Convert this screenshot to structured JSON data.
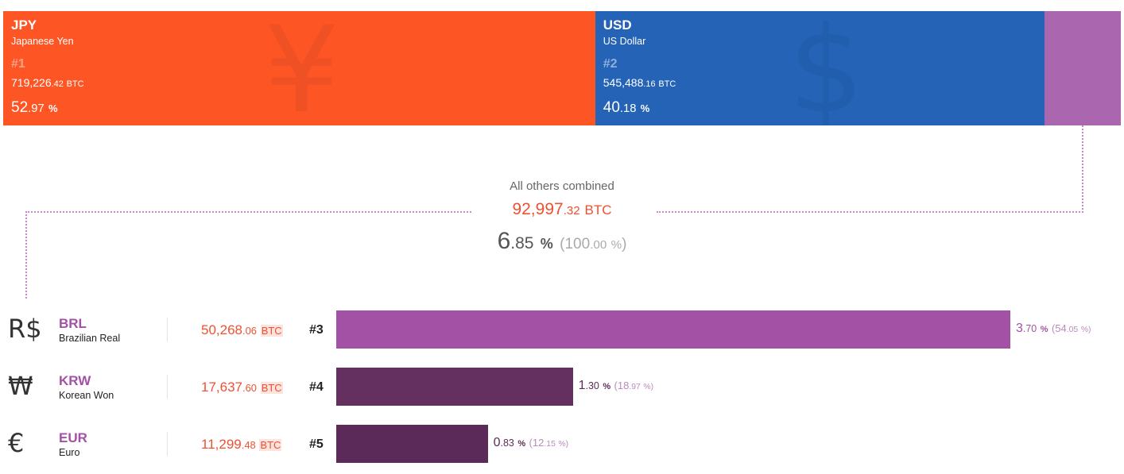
{
  "top_currencies": [
    {
      "code": "JPY",
      "name": "Japanese Yen",
      "symbol": "¥",
      "rank": "#1",
      "btc_int": "719,226",
      "btc_dec": ".42",
      "btc_unit": "BTC",
      "pct_int": "52",
      "pct_dec": ".97",
      "pct_unit": "%",
      "color": "#fd5523",
      "rank_color": "#fca189",
      "symbol_color": "#e54e25"
    },
    {
      "code": "USD",
      "name": "US Dollar",
      "symbol": "$",
      "rank": "#2",
      "btc_int": "545,488",
      "btc_dec": ".16",
      "btc_unit": "BTC",
      "pct_int": "40",
      "pct_dec": ".18",
      "pct_unit": "%",
      "color": "#2563b7",
      "rank_color": "#90b0dc",
      "symbol_color": "#1f5aa6"
    }
  ],
  "others_color": "#ab66b0",
  "others": {
    "label": "All others combined",
    "btc_int": "92,997",
    "btc_dec": ".32",
    "btc_unit": "BTC",
    "pct_int": "6",
    "pct_dec": ".85",
    "pct_unit": "%",
    "share_open": "(",
    "share_int": "100",
    "share_dec": ".00",
    "share_unit": "%",
    "share_close": ")"
  },
  "rows": [
    {
      "symbol": "R$",
      "code": "BRL",
      "name": "Brazilian Real",
      "btc_int": "50,268",
      "btc_dec": ".06",
      "btc_unit": "BTC",
      "rank": "#3",
      "pct_int": "3",
      "pct_dec": ".70",
      "pct_unit": "%",
      "share_int": "(54",
      "share_dec": ".05",
      "share_unit": "%)",
      "share_of_others": 54.05,
      "bar_color": "#a351a5",
      "pct_color": "#a351a5"
    },
    {
      "symbol": "₩",
      "code": "KRW",
      "name": "Korean Won",
      "btc_int": "17,637",
      "btc_dec": ".60",
      "btc_unit": "BTC",
      "rank": "#4",
      "pct_int": "1",
      "pct_dec": ".30",
      "pct_unit": "%",
      "share_int": "(18",
      "share_dec": ".97",
      "share_unit": "%)",
      "share_of_others": 18.97,
      "bar_color": "#63305f",
      "pct_color": "#5a2d58"
    },
    {
      "symbol": "€",
      "code": "EUR",
      "name": "Euro",
      "btc_int": "11,299",
      "btc_dec": ".48",
      "btc_unit": "BTC",
      "rank": "#5",
      "pct_int": "0",
      "pct_dec": ".83",
      "pct_unit": "%",
      "share_int": "(12",
      "share_dec": ".15",
      "share_unit": "%)",
      "share_of_others": 12.15,
      "bar_color": "#5b2a58",
      "pct_color": "#5a2d58"
    }
  ],
  "chart_data": {
    "type": "bar",
    "categories": [
      "JPY",
      "USD",
      "BRL",
      "KRW",
      "EUR"
    ],
    "series": [
      {
        "name": "",
        "values": [
          52.97,
          40.18,
          3.7,
          1.3,
          0.83
        ]
      }
    ],
    "ylabel": "",
    "others_total_pct": 6.85
  }
}
